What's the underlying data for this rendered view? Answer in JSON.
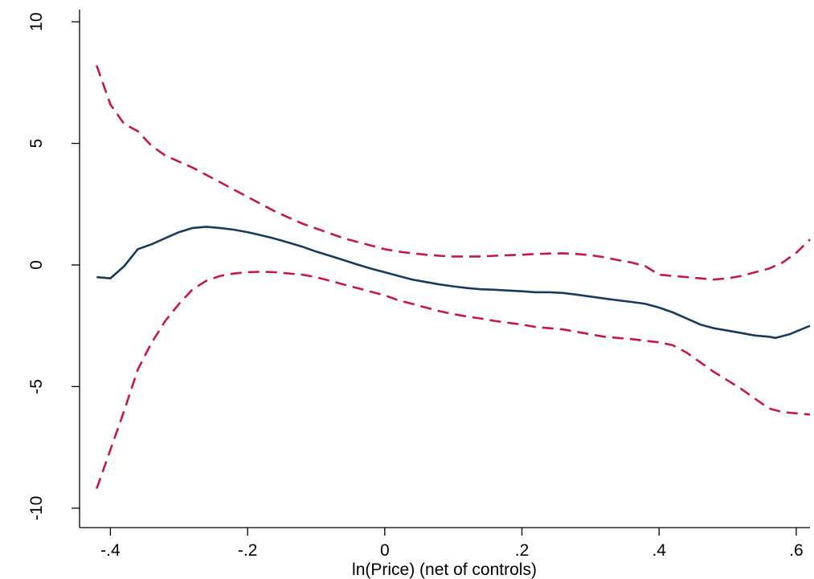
{
  "chart_data": {
    "type": "line",
    "title": "",
    "xlabel": "ln(Price) (net of controls)",
    "ylabel": "",
    "xlim": [
      -0.445,
      0.62
    ],
    "ylim": [
      -10.8,
      10.5
    ],
    "grid": false,
    "legend": "none",
    "x_ticks": [
      {
        "value": -0.4,
        "label": "-.4"
      },
      {
        "value": -0.2,
        "label": "-.2"
      },
      {
        "value": 0,
        "label": "0"
      },
      {
        "value": 0.2,
        "label": ".2"
      },
      {
        "value": 0.4,
        "label": ".4"
      },
      {
        "value": 0.6,
        "label": ".6"
      }
    ],
    "y_ticks": [
      {
        "value": -10,
        "label": "-10"
      },
      {
        "value": -5,
        "label": "-5"
      },
      {
        "value": 0,
        "label": "0"
      },
      {
        "value": 5,
        "label": "5"
      },
      {
        "value": 10,
        "label": "10"
      }
    ],
    "series": [
      {
        "style": "solid",
        "color": "#1a3a5c",
        "x": [
          -0.42,
          -0.4,
          -0.38,
          -0.36,
          -0.34,
          -0.32,
          -0.3,
          -0.28,
          -0.26,
          -0.24,
          -0.22,
          -0.2,
          -0.18,
          -0.16,
          -0.14,
          -0.12,
          -0.1,
          -0.08,
          -0.06,
          -0.04,
          -0.02,
          0,
          0.02,
          0.04,
          0.06,
          0.08,
          0.1,
          0.12,
          0.14,
          0.16,
          0.18,
          0.2,
          0.22,
          0.24,
          0.26,
          0.28,
          0.3,
          0.32,
          0.34,
          0.36,
          0.38,
          0.4,
          0.42,
          0.44,
          0.46,
          0.48,
          0.5,
          0.52,
          0.54,
          0.56,
          0.57,
          0.59,
          0.62
        ],
        "y": [
          -0.5,
          -0.55,
          -0.05,
          0.65,
          0.85,
          1.1,
          1.35,
          1.52,
          1.57,
          1.52,
          1.45,
          1.35,
          1.22,
          1.08,
          0.92,
          0.75,
          0.55,
          0.38,
          0.2,
          0.02,
          -0.15,
          -0.3,
          -0.45,
          -0.6,
          -0.7,
          -0.8,
          -0.88,
          -0.95,
          -1.0,
          -1.02,
          -1.05,
          -1.08,
          -1.12,
          -1.12,
          -1.15,
          -1.22,
          -1.3,
          -1.38,
          -1.45,
          -1.52,
          -1.6,
          -1.75,
          -1.95,
          -2.2,
          -2.45,
          -2.6,
          -2.7,
          -2.8,
          -2.9,
          -2.95,
          -3.0,
          -2.85,
          -2.5
        ]
      },
      {
        "style": "dashed",
        "color": "#c4184a",
        "x": [
          -0.42,
          -0.4,
          -0.38,
          -0.36,
          -0.34,
          -0.32,
          -0.3,
          -0.28,
          -0.26,
          -0.24,
          -0.22,
          -0.2,
          -0.18,
          -0.16,
          -0.14,
          -0.12,
          -0.1,
          -0.08,
          -0.06,
          -0.04,
          -0.02,
          0,
          0.02,
          0.04,
          0.06,
          0.08,
          0.1,
          0.12,
          0.14,
          0.16,
          0.18,
          0.2,
          0.22,
          0.24,
          0.26,
          0.28,
          0.3,
          0.32,
          0.34,
          0.36,
          0.38,
          0.4,
          0.42,
          0.44,
          0.46,
          0.48,
          0.5,
          0.52,
          0.54,
          0.56,
          0.58,
          0.6,
          0.62
        ],
        "y": [
          8.2,
          6.6,
          5.8,
          5.5,
          4.9,
          4.5,
          4.25,
          4.0,
          3.7,
          3.4,
          3.1,
          2.8,
          2.5,
          2.2,
          1.95,
          1.7,
          1.5,
          1.3,
          1.1,
          0.95,
          0.8,
          0.65,
          0.55,
          0.48,
          0.42,
          0.38,
          0.35,
          0.35,
          0.35,
          0.38,
          0.4,
          0.42,
          0.45,
          0.47,
          0.48,
          0.45,
          0.4,
          0.32,
          0.2,
          0.1,
          -0.05,
          -0.4,
          -0.45,
          -0.5,
          -0.55,
          -0.6,
          -0.55,
          -0.45,
          -0.3,
          -0.15,
          0.1,
          0.5,
          1.05
        ]
      },
      {
        "style": "dashed",
        "color": "#c4184a",
        "x": [
          -0.42,
          -0.4,
          -0.38,
          -0.36,
          -0.34,
          -0.32,
          -0.3,
          -0.28,
          -0.26,
          -0.24,
          -0.22,
          -0.2,
          -0.18,
          -0.16,
          -0.14,
          -0.12,
          -0.1,
          -0.08,
          -0.06,
          -0.04,
          -0.02,
          0,
          0.02,
          0.04,
          0.06,
          0.08,
          0.1,
          0.12,
          0.14,
          0.16,
          0.18,
          0.2,
          0.22,
          0.24,
          0.26,
          0.28,
          0.3,
          0.32,
          0.34,
          0.36,
          0.38,
          0.4,
          0.42,
          0.44,
          0.46,
          0.48,
          0.5,
          0.52,
          0.54,
          0.56,
          0.58,
          0.6,
          0.62
        ],
        "y": [
          -9.2,
          -7.6,
          -6.0,
          -4.3,
          -3.2,
          -2.3,
          -1.6,
          -1.0,
          -0.65,
          -0.45,
          -0.35,
          -0.3,
          -0.28,
          -0.3,
          -0.35,
          -0.4,
          -0.5,
          -0.65,
          -0.8,
          -0.95,
          -1.1,
          -1.25,
          -1.45,
          -1.6,
          -1.75,
          -1.9,
          -2.02,
          -2.12,
          -2.2,
          -2.3,
          -2.38,
          -2.45,
          -2.55,
          -2.6,
          -2.65,
          -2.75,
          -2.85,
          -2.95,
          -3.0,
          -3.05,
          -3.12,
          -3.18,
          -3.3,
          -3.6,
          -4.0,
          -4.4,
          -4.75,
          -5.1,
          -5.5,
          -5.9,
          -6.05,
          -6.1,
          -6.15
        ]
      }
    ]
  }
}
